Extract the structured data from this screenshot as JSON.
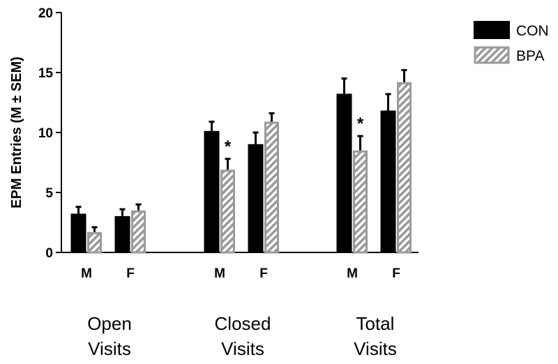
{
  "chart_data": {
    "type": "bar",
    "ylabel": "EPM Entries  (M ± SEM)",
    "ylim": [
      0,
      20
    ],
    "yticks": [
      0,
      5,
      10,
      15,
      20
    ],
    "legend": {
      "placement": "top-right",
      "entries": [
        {
          "name": "CON",
          "style": "solid",
          "color": "#000000"
        },
        {
          "name": "BPA",
          "style": "hatched",
          "color": "#9a9a9a"
        }
      ]
    },
    "groups": [
      {
        "label_line1": "Open",
        "label_line2": "Visits",
        "subgroups": [
          {
            "label": "M",
            "CON": {
              "mean": 3.2,
              "sem": 0.6
            },
            "BPA": {
              "mean": 1.7,
              "sem": 0.4
            },
            "significance": ""
          },
          {
            "label": "F",
            "CON": {
              "mean": 3.0,
              "sem": 0.6
            },
            "BPA": {
              "mean": 3.5,
              "sem": 0.5
            },
            "significance": ""
          }
        ]
      },
      {
        "label_line1": "Closed",
        "label_line2": "Visits",
        "subgroups": [
          {
            "label": "M",
            "CON": {
              "mean": 10.1,
              "sem": 0.8
            },
            "BPA": {
              "mean": 6.9,
              "sem": 0.9
            },
            "significance": "*"
          },
          {
            "label": "F",
            "CON": {
              "mean": 9.0,
              "sem": 1.0
            },
            "BPA": {
              "mean": 10.9,
              "sem": 0.7
            },
            "significance": ""
          }
        ]
      },
      {
        "label_line1": "Total",
        "label_line2": "Visits",
        "subgroups": [
          {
            "label": "M",
            "CON": {
              "mean": 13.2,
              "sem": 1.3
            },
            "BPA": {
              "mean": 8.5,
              "sem": 1.2
            },
            "significance": "*"
          },
          {
            "label": "F",
            "CON": {
              "mean": 11.8,
              "sem": 1.4
            },
            "BPA": {
              "mean": 14.2,
              "sem": 1.0
            },
            "significance": ""
          }
        ]
      }
    ]
  }
}
